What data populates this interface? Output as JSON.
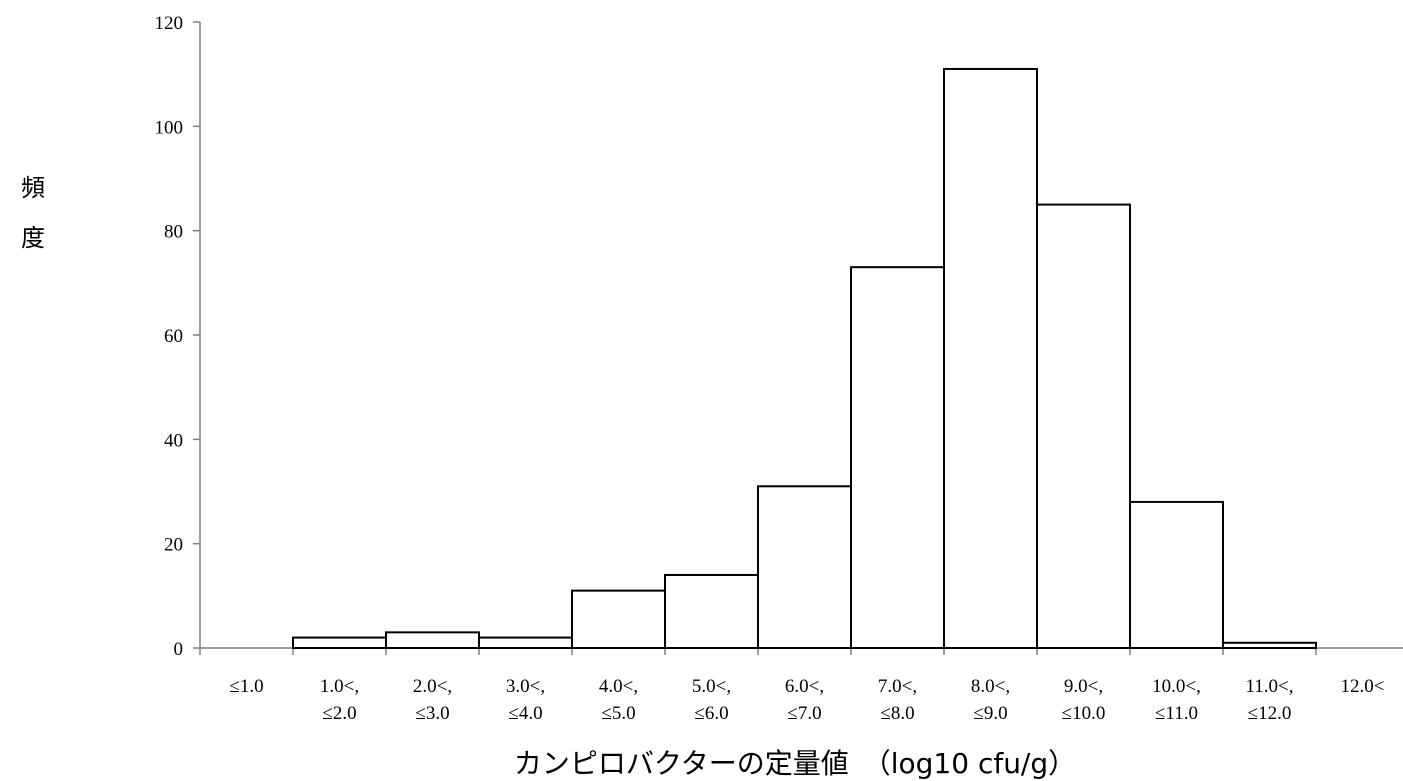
{
  "chart_data": {
    "type": "bar",
    "categories": [
      [
        "≤1.0"
      ],
      [
        "1.0<,",
        "≤2.0"
      ],
      [
        "2.0<,",
        "≤3.0"
      ],
      [
        "3.0<,",
        "≤4.0"
      ],
      [
        "4.0<,",
        "≤5.0"
      ],
      [
        "5.0<,",
        "≤6.0"
      ],
      [
        "6.0<,",
        "≤7.0"
      ],
      [
        "7.0<,",
        "≤8.0"
      ],
      [
        "8.0<,",
        "≤9.0"
      ],
      [
        "9.0<,",
        "≤10.0"
      ],
      [
        "10.0<,",
        "≤11.0"
      ],
      [
        "11.0<,",
        "≤12.0"
      ],
      [
        "12.0<"
      ]
    ],
    "values": [
      0,
      2,
      3,
      2,
      11,
      14,
      31,
      73,
      111,
      85,
      28,
      1,
      0
    ],
    "title": "",
    "xlabel": "カンピロバクターの定量値　（log10 cfu/g）",
    "ylabel": "頻度",
    "ylim": [
      0,
      120
    ],
    "yticks": [
      0,
      20,
      40,
      60,
      80,
      100,
      120
    ],
    "grid": false,
    "bar_fill": "#ffffff",
    "bar_stroke": "#000000",
    "axis_color": "#808080"
  }
}
